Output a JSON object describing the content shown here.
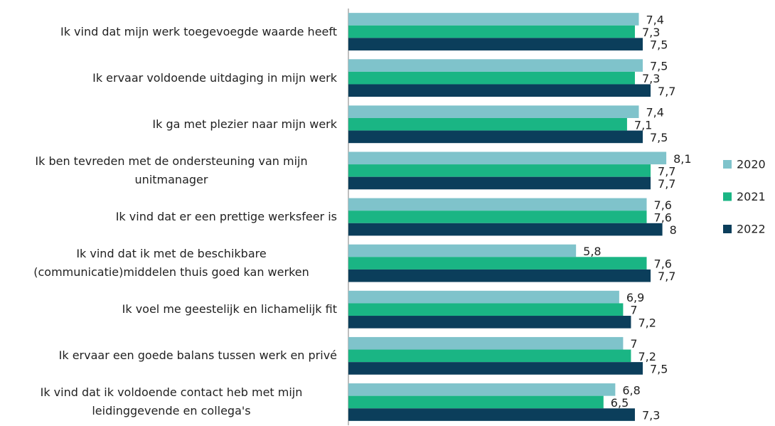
{
  "chart_data": {
    "type": "barh",
    "categories": [
      "Ik vind dat mijn werk toegevoegde waarde heeft",
      "Ik ervaar voldoende uitdaging in mijn werk",
      "Ik ga met plezier naar mijn werk",
      "Ik ben tevreden met de ondersteuning van mijn unitmanager",
      "Ik vind dat er een prettige werksfeer is",
      "Ik vind dat ik met de beschikbare (communicatie)middelen thuis goed kan werken",
      "Ik voel me geestelijk en lichamelijk fit",
      "Ik ervaar een goede balans tussen werk en privé",
      "Ik vind dat ik voldoende contact heb met mijn leidinggevende en collega's"
    ],
    "series": [
      {
        "name": "2020",
        "color": "#7fc3cb",
        "values": [
          7.4,
          7.5,
          7.4,
          8.1,
          7.6,
          5.8,
          6.9,
          7,
          6.8
        ],
        "value_labels": [
          "7,4",
          "7,5",
          "7,4",
          "8,1",
          "7,6",
          "5,8",
          "6,9",
          "7",
          "6,8"
        ]
      },
      {
        "name": "2021",
        "color": "#1ab584",
        "values": [
          7.3,
          7.3,
          7.1,
          7.7,
          7.6,
          7.6,
          7,
          7.2,
          6.5
        ],
        "value_labels": [
          "7,3",
          "7,3",
          "7,1",
          "7,7",
          "7,6",
          "7,6",
          "7",
          "7,2",
          "6,5"
        ]
      },
      {
        "name": "2022",
        "color": "#0b3e5b",
        "values": [
          7.5,
          7.7,
          7.5,
          7.7,
          8,
          7.7,
          7.2,
          7.5,
          7.3
        ],
        "value_labels": [
          "7,5",
          "7,7",
          "7,5",
          "7,7",
          "8",
          "7,7",
          "7,2",
          "7,5",
          "7,3"
        ]
      }
    ],
    "xlim": [
      0,
      10
    ],
    "legend": "right"
  }
}
